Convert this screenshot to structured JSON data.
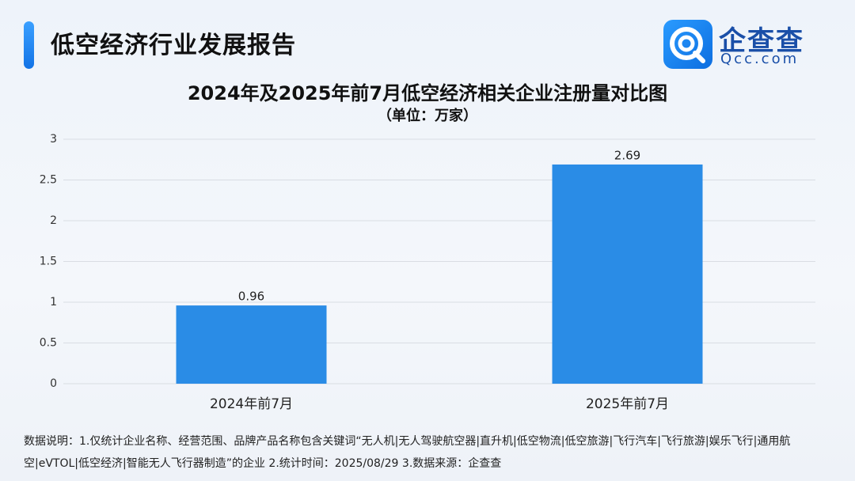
{
  "header": {
    "title": "低空经济行业发展报告",
    "logo": "企查查",
    "logo_domain": "Qcc.com"
  },
  "chart_data": {
    "type": "bar",
    "title": "2024年及2025年前7月低空经济相关企业注册量对比图",
    "subtitle": "（单位：万家）",
    "categories": [
      "2024年前7月",
      "2025年前7月"
    ],
    "values": [
      0.96,
      2.69
    ],
    "color": "#2a8ce6",
    "ylim": [
      0,
      3
    ],
    "yticks": [
      0,
      0.5,
      1,
      1.5,
      2,
      2.5,
      3
    ],
    "grid": true
  },
  "footnote": "数据说明：1.仅统计企业名称、经营范围、品牌产品名称包含关键词“无人机|无人驾驶航空器|直升机|低空物流|低空旅游|飞行汽车|飞行旅游|娱乐飞行|通用航空|eVTOL|低空经济|智能无人飞行器制造”的企业  2.统计时间：2025/08/29  3.数据来源：企查查"
}
